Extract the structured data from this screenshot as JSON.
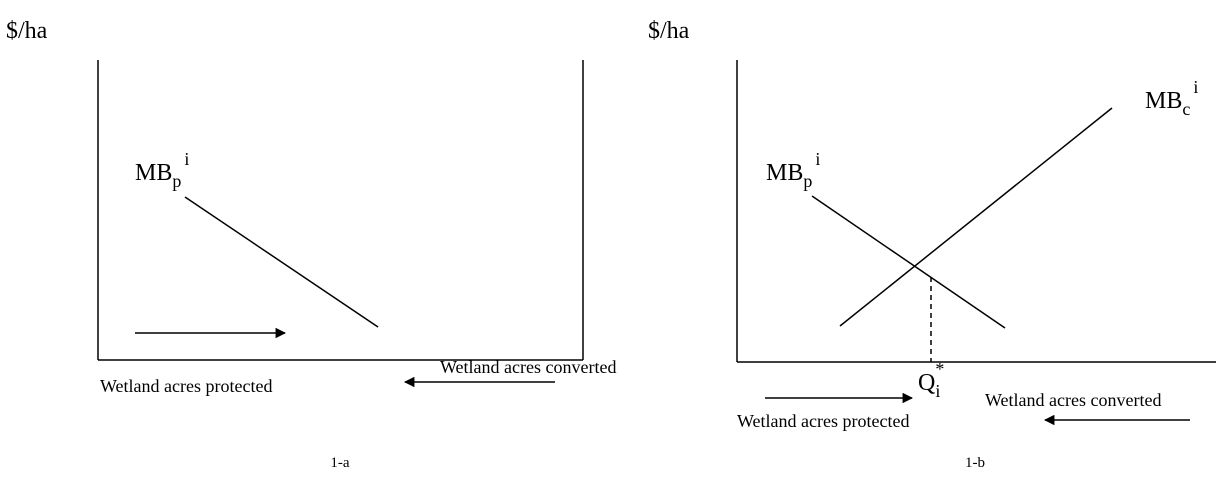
{
  "panels": [
    {
      "y_label": "$/ha",
      "curves": [
        {
          "base": "MB",
          "sub": "p",
          "sup": "i"
        }
      ],
      "protected_label": "Wetland acres protected",
      "converted_label": "Wetland acres converted",
      "caption": "1-a"
    },
    {
      "y_label": "$/ha",
      "curves": [
        {
          "base": "MB",
          "sub": "p",
          "sup": "i"
        },
        {
          "base": "MB",
          "sub": "c",
          "sup": "i"
        }
      ],
      "equilibrium": {
        "base": "Q",
        "sub": "i",
        "sup": "*"
      },
      "protected_label": "Wetland acres protected",
      "converted_label": "Wetland acres converted",
      "caption": "1-b"
    }
  ]
}
